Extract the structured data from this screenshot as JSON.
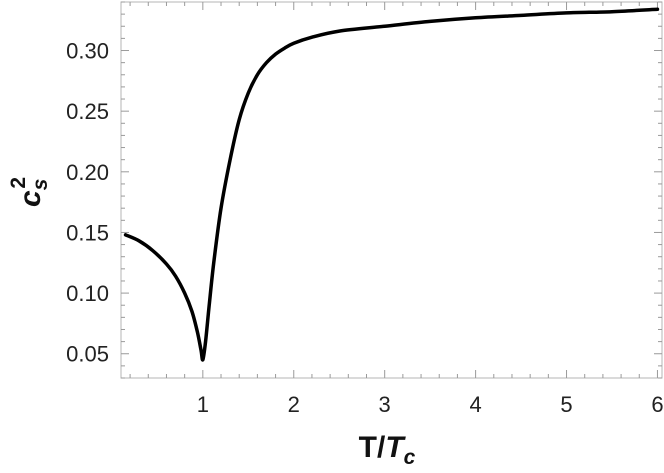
{
  "chart_data": {
    "type": "line",
    "title": "",
    "xlabel": {
      "main": "T/",
      "italic": "T",
      "sub": "c"
    },
    "ylabel": {
      "main": "c",
      "sub": "s",
      "sup": "2"
    },
    "xlim": [
      0.1,
      6.05
    ],
    "ylim": [
      0.03,
      0.34
    ],
    "xticks": [
      1,
      2,
      3,
      4,
      5,
      6
    ],
    "xtick_labels": [
      "1",
      "2",
      "3",
      "4",
      "5",
      "6"
    ],
    "yticks": [
      0.05,
      0.1,
      0.15,
      0.2,
      0.25,
      0.3
    ],
    "ytick_labels": [
      "0.05",
      "0.10",
      "0.15",
      "0.20",
      "0.25",
      "0.30"
    ],
    "grid": false,
    "series": [
      {
        "color": "#000000",
        "x": [
          0.15,
          0.3,
          0.45,
          0.6,
          0.7,
          0.8,
          0.88,
          0.94,
          0.98,
          1.0,
          1.03,
          1.07,
          1.12,
          1.2,
          1.3,
          1.4,
          1.5,
          1.6,
          1.7,
          1.8,
          1.9,
          2.0,
          2.2,
          2.5,
          3.0,
          3.5,
          4.0,
          4.5,
          5.0,
          5.5,
          6.0
        ],
        "y": [
          0.148,
          0.143,
          0.135,
          0.124,
          0.114,
          0.1,
          0.085,
          0.068,
          0.053,
          0.045,
          0.06,
          0.09,
          0.125,
          0.17,
          0.21,
          0.243,
          0.265,
          0.28,
          0.29,
          0.297,
          0.302,
          0.306,
          0.311,
          0.316,
          0.32,
          0.324,
          0.327,
          0.329,
          0.331,
          0.332,
          0.334
        ]
      }
    ]
  }
}
